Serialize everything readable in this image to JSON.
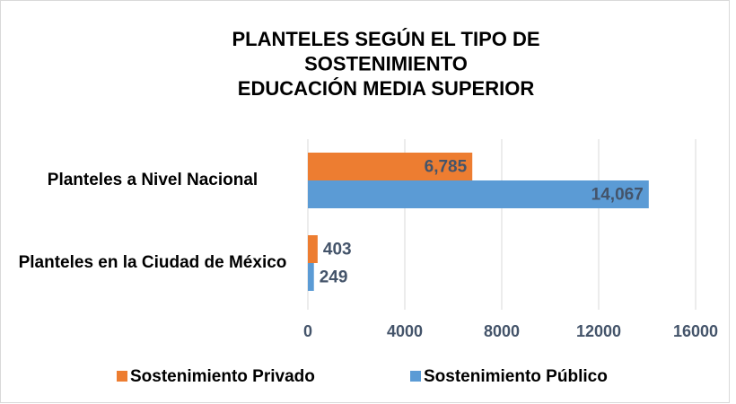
{
  "chart_data": {
    "type": "barh",
    "title": [
      "PLANTELES SEGÚN EL TIPO DE",
      "SOSTENIMIENTO",
      "EDUCACIÓN MEDIA SUPERIOR"
    ],
    "categories": [
      "Planteles a Nivel Nacional",
      "Planteles en la Ciudad de México"
    ],
    "series": [
      {
        "name": "Sostenimiento Privado",
        "color": "#ed7d31",
        "values": [
          6785,
          403
        ],
        "value_labels": [
          "6,785",
          "403"
        ]
      },
      {
        "name": "Sostenimiento Público",
        "color": "#5b9bd5",
        "values": [
          14067,
          249
        ],
        "value_labels": [
          "14,067",
          "249"
        ]
      }
    ],
    "xlim": [
      0,
      16000
    ],
    "xticks": [
      0,
      4000,
      8000,
      12000,
      16000
    ],
    "grid": true,
    "legend": "bottom"
  }
}
